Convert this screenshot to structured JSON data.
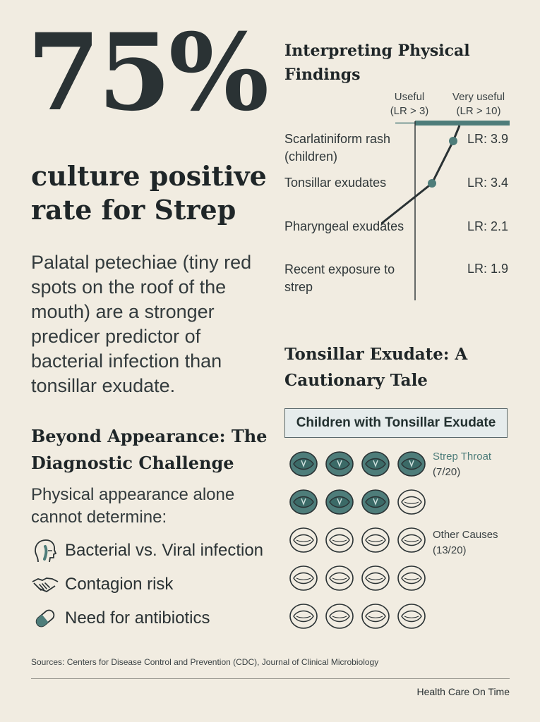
{
  "stat": {
    "value": "75%",
    "caption": "culture positive rate for Strep",
    "description": "Palatal petechiae (tiny red spots on the roof of the mouth) are a stronger predicer predictor of bacterial infection than tonsillar exudate."
  },
  "beyond": {
    "title": "Beyond Appearance: The Diagnostic Challenge",
    "text": "Physical appearance alone cannot determine:",
    "items": [
      {
        "icon": "throat-profile-icon",
        "label": "Bacterial vs. Viral infection"
      },
      {
        "icon": "handshake-icon",
        "label": "Contagion risk"
      },
      {
        "icon": "pill-icon",
        "label": "Need for antibiotics"
      }
    ]
  },
  "findings": {
    "title": "Interpreting Physical Findings",
    "scale_useful": "Useful (LR > 3)",
    "scale_very_useful": "Very useful (LR > 10)",
    "items": [
      {
        "label": "Scarlatiniform rash (children)",
        "lr": 3.9,
        "lr_text": "LR: 3.9"
      },
      {
        "label": "Tonsillar exudates",
        "lr": 3.4,
        "lr_text": "LR: 3.4"
      },
      {
        "label": "Pharyngeal exudates",
        "lr": 2.1,
        "lr_text": "LR: 2.1"
      },
      {
        "label": "Recent exposure to strep",
        "lr": 1.9,
        "lr_text": "LR: 1.9"
      }
    ]
  },
  "tale": {
    "title": "Tonsillar Exudate: A Cautionary Tale",
    "box_label": "Children with Tonsillar Exudate",
    "total": 20,
    "strep_count": 7,
    "strep_label": "Strep Throat",
    "strep_count_text": "(7/20)",
    "other_label": "Other Causes",
    "other_count_text": "(13/20)"
  },
  "colors": {
    "background": "#f1ece1",
    "teal": "#4e7d7a",
    "text": "#2a3234"
  },
  "footer": {
    "sources": "Sources: Centers for Disease Control and Prevention (CDC), Journal of Clinical Microbiology",
    "brand": "Health Care On Time"
  }
}
